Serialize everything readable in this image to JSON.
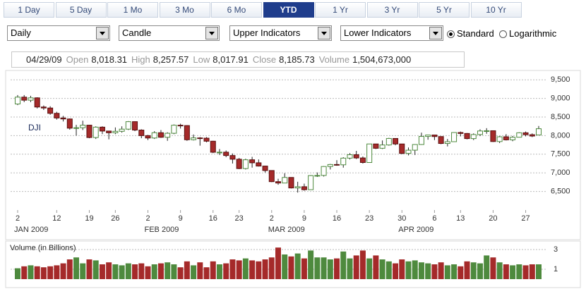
{
  "toolbar": {
    "ranges": [
      {
        "label": "1 Day"
      },
      {
        "label": "5 Day"
      },
      {
        "label": "1 Mo"
      },
      {
        "label": "3 Mo"
      },
      {
        "label": "6 Mo"
      },
      {
        "label": "YTD",
        "active": true
      },
      {
        "label": "1 Yr"
      },
      {
        "label": "3 Yr"
      },
      {
        "label": "5 Yr"
      },
      {
        "label": "10 Yr"
      }
    ]
  },
  "controls": {
    "dropdowns": [
      "Daily",
      "Candle",
      "Upper Indicators",
      "Lower Indicators"
    ],
    "radios": [
      {
        "label": "Standard",
        "checked": true
      },
      {
        "label": "Logarithmic",
        "checked": false
      }
    ]
  },
  "quote": {
    "date": "04/29/09",
    "fields": [
      {
        "label": "Open",
        "value": "8,018.31"
      },
      {
        "label": "High",
        "value": "8,257.57"
      },
      {
        "label": "Low",
        "value": "8,017.91"
      },
      {
        "label": "Close",
        "value": "8,185.73"
      },
      {
        "label": "Volume",
        "value": "1,504,673,000"
      }
    ]
  },
  "chart_data": {
    "type": "candlestick",
    "symbol": "DJI",
    "categories": [
      "2",
      null,
      null,
      null,
      null,
      null,
      "12",
      null,
      null,
      null,
      null,
      "19",
      null,
      null,
      null,
      "26",
      null,
      null,
      null,
      null,
      "2",
      null,
      null,
      null,
      null,
      "9",
      null,
      null,
      null,
      null,
      "16",
      null,
      null,
      null,
      "23",
      null,
      null,
      null,
      null,
      "2",
      null,
      null,
      null,
      null,
      "9",
      null,
      null,
      null,
      null,
      "16",
      null,
      null,
      null,
      null,
      "23",
      null,
      null,
      null,
      null,
      "30",
      null,
      null,
      null,
      null,
      "6",
      null,
      null,
      null,
      "13",
      null,
      null,
      null,
      null,
      "20",
      null,
      null,
      null,
      null,
      "27",
      null,
      null
    ],
    "category_groups": [
      "JAN 2009",
      null,
      null,
      null,
      null,
      null,
      null,
      null,
      null,
      null,
      null,
      null,
      null,
      null,
      null,
      null,
      null,
      null,
      null,
      null,
      "FEB 2009",
      null,
      null,
      null,
      null,
      null,
      null,
      null,
      null,
      null,
      null,
      null,
      null,
      null,
      null,
      null,
      null,
      null,
      null,
      "MAR 2009",
      null,
      null,
      null,
      null,
      null,
      null,
      null,
      null,
      null,
      null,
      null,
      null,
      null,
      null,
      null,
      null,
      null,
      null,
      null,
      "APR 2009",
      null,
      null,
      null,
      null,
      null,
      null,
      null,
      null,
      null,
      null,
      null,
      null,
      null,
      null,
      null,
      null,
      null,
      null,
      null,
      null,
      null
    ],
    "open": [
      8850,
      9034,
      8952,
      9015,
      8769,
      8742,
      8599,
      8474,
      8448,
      8200,
      8212,
      8281,
      7949,
      8228,
      8123,
      8077,
      8116,
      8174,
      8375,
      8149,
      8000,
      7936,
      8078,
      7956,
      8063,
      8280,
      8270,
      7889,
      7939,
      7932,
      7850,
      7553,
      7555,
      7465,
      7366,
      7115,
      7351,
      7270,
      7182,
      7062,
      6763,
      6726,
      6876,
      6594,
      6627,
      6547,
      6926,
      6930,
      7170,
      7224,
      7216,
      7395,
      7487,
      7400,
      7278,
      7776,
      7660,
      7749,
      7924,
      7776,
      7522,
      7609,
      7761,
      7978,
      8017,
      7975,
      7789,
      7837,
      8083,
      8058,
      7920,
      8029,
      8125,
      8131,
      7841,
      7969,
      7886,
      7957,
      8076,
      8025,
      8018.31
    ],
    "high": [
      9090,
      9090,
      9070,
      9030,
      8810,
      8790,
      8640,
      8530,
      8460,
      8290,
      8400,
      8290,
      8250,
      8250,
      8130,
      8220,
      8250,
      8390,
      8380,
      8170,
      8020,
      8120,
      8150,
      8090,
      8300,
      8320,
      8280,
      8030,
      7960,
      7960,
      7860,
      7640,
      7600,
      7520,
      7400,
      7380,
      7430,
      7360,
      7190,
      7070,
      6840,
      6990,
      6880,
      6760,
      6710,
      6940,
      7010,
      7180,
      7240,
      7340,
      7420,
      7530,
      7590,
      7440,
      7780,
      7780,
      7870,
      7940,
      7930,
      7780,
      7680,
      7770,
      8080,
      8020,
      8020,
      7980,
      7910,
      8090,
      8110,
      8070,
      8060,
      8170,
      8200,
      8140,
      7990,
      8040,
      7990,
      8090,
      8110,
      8060,
      8257.57
    ],
    "low": [
      8820,
      8900,
      8900,
      8730,
      8690,
      8560,
      8430,
      8380,
      8160,
      8000,
      8150,
      7930,
      7910,
      8040,
      7900,
      8040,
      8080,
      8150,
      8120,
      7930,
      7880,
      7910,
      7940,
      7860,
      8040,
      8190,
      7860,
      7870,
      7730,
      7820,
      7530,
      7480,
      7420,
      7250,
      7100,
      7090,
      7140,
      7170,
      7010,
      6750,
      6680,
      6720,
      6580,
      6470,
      6520,
      6540,
      6890,
      6900,
      7090,
      7190,
      7140,
      7360,
      7370,
      7250,
      7270,
      7640,
      7640,
      7730,
      7740,
      7500,
      7470,
      7480,
      7750,
      7890,
      7880,
      7770,
      7710,
      7830,
      7980,
      7900,
      7880,
      7990,
      8050,
      7830,
      7800,
      7870,
      7850,
      7950,
      7980,
      7960,
      8017.91
    ],
    "close": [
      9034,
      8952,
      9015,
      8769,
      8742,
      8599,
      8474,
      8448,
      8200,
      8212,
      8281,
      7949,
      8228,
      8123,
      8077,
      8116,
      8174,
      8375,
      8149,
      8000,
      7936,
      8078,
      7956,
      8063,
      8280,
      8270,
      7889,
      7939,
      7932,
      7850,
      7553,
      7555,
      7465,
      7366,
      7115,
      7351,
      7270,
      7182,
      7062,
      6763,
      6726,
      6876,
      6594,
      6627,
      6547,
      6926,
      6930,
      7170,
      7224,
      7216,
      7395,
      7487,
      7400,
      7278,
      7776,
      7660,
      7749,
      7924,
      7776,
      7522,
      7609,
      7761,
      7978,
      8017,
      7975,
      7789,
      7837,
      8083,
      8058,
      7920,
      8029,
      8125,
      8131,
      7841,
      7969,
      7886,
      7957,
      8076,
      8025,
      7989,
      8185.73
    ],
    "up_color": "#4e8a3e",
    "down_color": "#a52a2a",
    "ylim": [
      6000,
      9750
    ],
    "yticks": [
      {
        "value": 6500,
        "label": "6,500"
      },
      {
        "value": 7000,
        "label": "7,000"
      },
      {
        "value": 7500,
        "label": "7,500"
      },
      {
        "value": 8000,
        "label": "8,000"
      },
      {
        "value": 8500,
        "label": "8,500"
      },
      {
        "value": 9000,
        "label": "9,000"
      },
      {
        "value": 9500,
        "label": "9,500"
      }
    ],
    "grid": true,
    "volume": {
      "title": "Volume (in Billions)",
      "values": [
        1.1,
        1.3,
        1.4,
        1.3,
        1.2,
        1.3,
        1.4,
        1.6,
        2.0,
        2.2,
        1.6,
        2.0,
        1.9,
        1.5,
        1.7,
        1.5,
        1.4,
        1.6,
        1.5,
        1.6,
        1.3,
        1.5,
        1.6,
        1.7,
        1.5,
        1.2,
        1.8,
        1.4,
        1.7,
        1.2,
        1.8,
        1.5,
        1.6,
        2.0,
        1.9,
        2.1,
        1.9,
        1.8,
        2.0,
        2.2,
        3.2,
        2.5,
        2.3,
        2.6,
        2.1,
        2.9,
        2.2,
        2.2,
        2.0,
        2.1,
        2.8,
        2.1,
        2.4,
        2.9,
        2.1,
        2.4,
        2.0,
        1.8,
        1.6,
        2.0,
        1.8,
        1.9,
        1.7,
        1.6,
        1.5,
        1.7,
        1.4,
        1.5,
        1.3,
        1.8,
        1.7,
        1.6,
        2.4,
        2.2,
        1.7,
        1.5,
        1.4,
        1.5,
        1.4,
        1.5,
        1.5
      ],
      "ylim": [
        0,
        3.6
      ],
      "yticks": [
        1,
        3
      ]
    }
  }
}
